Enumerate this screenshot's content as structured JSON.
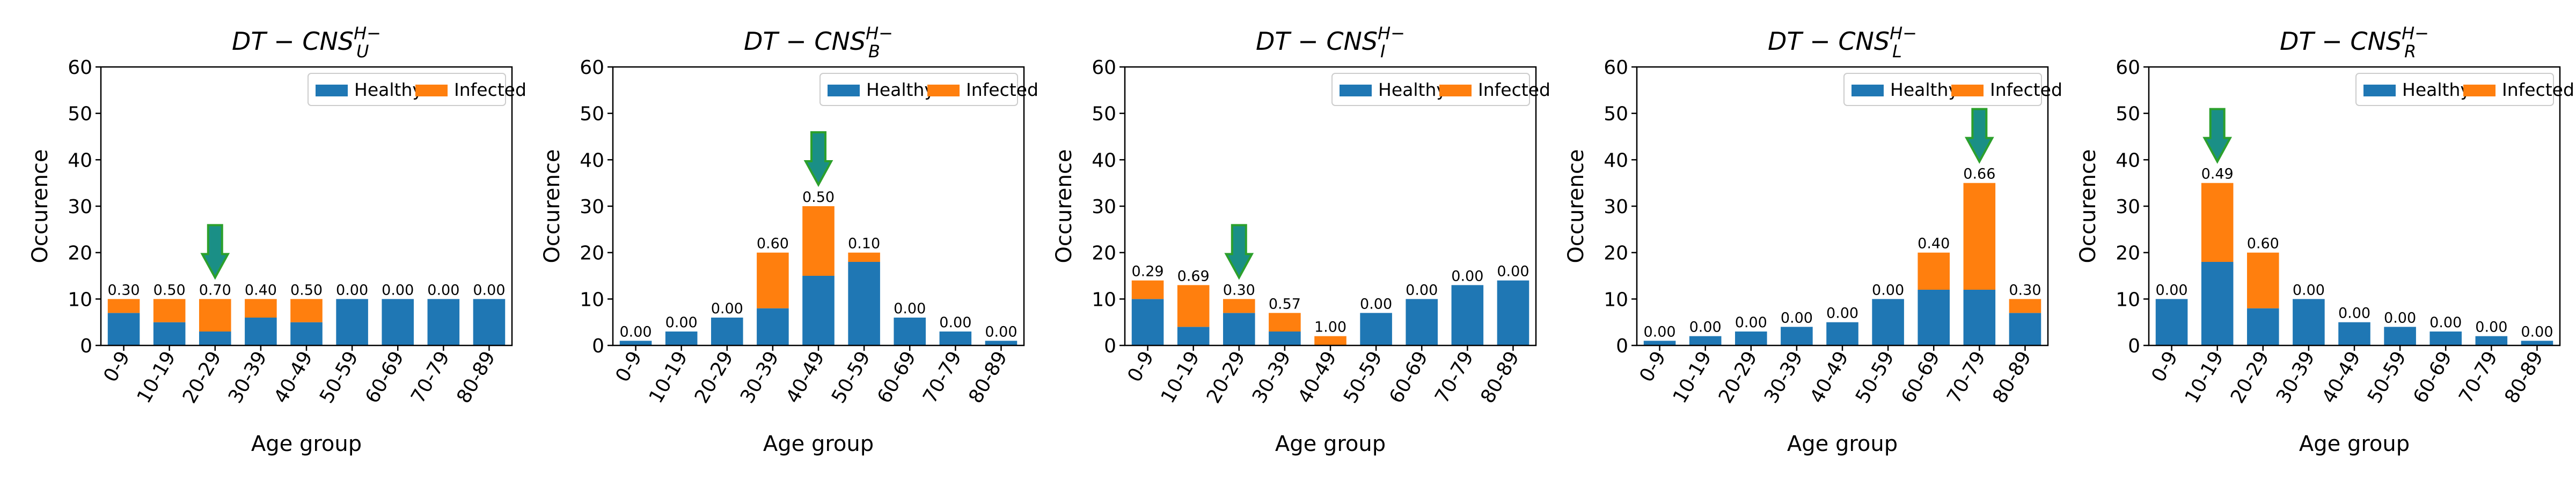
{
  "figure": {
    "colors": {
      "healthy": "#1f77b4",
      "infected": "#ff7f0e",
      "arrow_fill": "#1a8f86",
      "arrow_edge": "#2ca02c"
    }
  },
  "chart_data": [
    {
      "type": "bar",
      "stacked": true,
      "title_base": "DT − CNS",
      "title_sub": "U",
      "title_sup": "H−",
      "xlabel": "Age group",
      "ylabel": "Occurence",
      "ylim": [
        0,
        60
      ],
      "yticks": [
        0,
        10,
        20,
        30,
        40,
        50,
        60
      ],
      "legend": {
        "location": "top-right",
        "entries": [
          "Healthy",
          "Infected"
        ]
      },
      "categories": [
        "0-9",
        "10-19",
        "20-29",
        "30-39",
        "40-49",
        "50-59",
        "60-69",
        "70-79",
        "80-89"
      ],
      "series": [
        {
          "name": "Healthy",
          "values": [
            7,
            5,
            3,
            6,
            5,
            10,
            10,
            10,
            10
          ]
        },
        {
          "name": "Infected",
          "values": [
            3,
            5,
            7,
            4,
            5,
            0,
            0,
            0,
            0
          ]
        }
      ],
      "labels": [
        "0.30",
        "0.50",
        "0.70",
        "0.40",
        "0.50",
        "0.00",
        "0.00",
        "0.00",
        "0.00"
      ],
      "arrow_category": "20-29"
    },
    {
      "type": "bar",
      "stacked": true,
      "title_base": "DT − CNS",
      "title_sub": "B",
      "title_sup": "H−",
      "xlabel": "Age group",
      "ylabel": "Occurence",
      "ylim": [
        0,
        60
      ],
      "yticks": [
        0,
        10,
        20,
        30,
        40,
        50,
        60
      ],
      "legend": {
        "location": "top-right",
        "entries": [
          "Healthy",
          "Infected"
        ]
      },
      "categories": [
        "0-9",
        "10-19",
        "20-29",
        "30-39",
        "40-49",
        "50-59",
        "60-69",
        "70-79",
        "80-89"
      ],
      "series": [
        {
          "name": "Healthy",
          "values": [
            1,
            3,
            6,
            8,
            15,
            18,
            6,
            3,
            1
          ]
        },
        {
          "name": "Infected",
          "values": [
            0,
            0,
            0,
            12,
            15,
            2,
            0,
            0,
            0
          ]
        }
      ],
      "labels": [
        "0.00",
        "0.00",
        "0.00",
        "0.60",
        "0.50",
        "0.10",
        "0.00",
        "0.00",
        "0.00"
      ],
      "arrow_category": "40-49"
    },
    {
      "type": "bar",
      "stacked": true,
      "title_base": "DT − CNS",
      "title_sub": "I",
      "title_sup": "H−",
      "xlabel": "Age group",
      "ylabel": "Occurence",
      "ylim": [
        0,
        60
      ],
      "yticks": [
        0,
        10,
        20,
        30,
        40,
        50,
        60
      ],
      "legend": {
        "location": "top-right",
        "entries": [
          "Healthy",
          "Infected"
        ]
      },
      "categories": [
        "0-9",
        "10-19",
        "20-29",
        "30-39",
        "40-49",
        "50-59",
        "60-69",
        "70-79",
        "80-89"
      ],
      "series": [
        {
          "name": "Healthy",
          "values": [
            10,
            4,
            7,
            3,
            0,
            7,
            10,
            13,
            14
          ]
        },
        {
          "name": "Infected",
          "values": [
            4,
            9,
            3,
            4,
            2,
            0,
            0,
            0,
            0
          ]
        }
      ],
      "labels": [
        "0.29",
        "0.69",
        "0.30",
        "0.57",
        "1.00",
        "0.00",
        "0.00",
        "0.00",
        "0.00"
      ],
      "arrow_category": "20-29"
    },
    {
      "type": "bar",
      "stacked": true,
      "title_base": "DT − CNS",
      "title_sub": "L",
      "title_sup": "H−",
      "xlabel": "Age group",
      "ylabel": "Occurence",
      "ylim": [
        0,
        60
      ],
      "yticks": [
        0,
        10,
        20,
        30,
        40,
        50,
        60
      ],
      "legend": {
        "location": "top-right",
        "entries": [
          "Healthy",
          "Infected"
        ]
      },
      "categories": [
        "0-9",
        "10-19",
        "20-29",
        "30-39",
        "40-49",
        "50-59",
        "60-69",
        "70-79",
        "80-89"
      ],
      "series": [
        {
          "name": "Healthy",
          "values": [
            1,
            2,
            3,
            4,
            5,
            10,
            12,
            12,
            7
          ]
        },
        {
          "name": "Infected",
          "values": [
            0,
            0,
            0,
            0,
            0,
            0,
            8,
            23,
            3
          ]
        }
      ],
      "labels": [
        "0.00",
        "0.00",
        "0.00",
        "0.00",
        "0.00",
        "0.00",
        "0.40",
        "0.66",
        "0.30"
      ],
      "arrow_category": "70-79"
    },
    {
      "type": "bar",
      "stacked": true,
      "title_base": "DT − CNS",
      "title_sub": "R",
      "title_sup": "H−",
      "xlabel": "Age group",
      "ylabel": "Occurence",
      "ylim": [
        0,
        60
      ],
      "yticks": [
        0,
        10,
        20,
        30,
        40,
        50,
        60
      ],
      "legend": {
        "location": "top-right",
        "entries": [
          "Healthy",
          "Infected"
        ]
      },
      "categories": [
        "0-9",
        "10-19",
        "20-29",
        "30-39",
        "40-49",
        "50-59",
        "60-69",
        "70-79",
        "80-89"
      ],
      "series": [
        {
          "name": "Healthy",
          "values": [
            10,
            18,
            8,
            10,
            5,
            4,
            3,
            2,
            1
          ]
        },
        {
          "name": "Infected",
          "values": [
            0,
            17,
            12,
            0,
            0,
            0,
            0,
            0,
            0
          ]
        }
      ],
      "labels": [
        "0.00",
        "0.49",
        "0.60",
        "0.00",
        "0.00",
        "0.00",
        "0.00",
        "0.00",
        "0.00"
      ],
      "arrow_category": "10-19"
    }
  ]
}
